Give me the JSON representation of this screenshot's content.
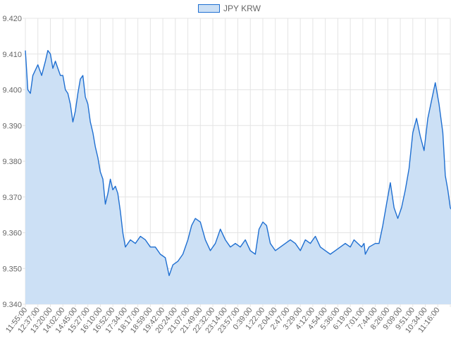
{
  "chart_data": {
    "type": "area",
    "legend_position": "top-center",
    "grid": true,
    "ylim": [
      9.34,
      9.42
    ],
    "y_ticks": [
      "9.420",
      "9.410",
      "9.400",
      "9.390",
      "9.380",
      "9.370",
      "9.360",
      "9.350",
      "9.340"
    ],
    "x_tick_labels": [
      "11:55:00",
      "12:37:00",
      "13:20:00",
      "14:02:00",
      "14:45:00",
      "15:27:00",
      "16:10:00",
      "16:52:00",
      "17:34:00",
      "18:17:00",
      "18:59:00",
      "19:42:00",
      "20:24:00",
      "21:07:00",
      "21:49:00",
      "22:32:00",
      "23:14:00",
      "23:57:00",
      "0:39:00",
      "1:22:00",
      "2:04:00",
      "2:47:00",
      "3:29:00",
      "4:12:00",
      "4:54:00",
      "5:36:00",
      "6:19:00",
      "7:01:00",
      "7:44:00",
      "8:26:00",
      "9:09:00",
      "9:51:00",
      "10:34:00",
      "11:16:00"
    ],
    "series": [
      {
        "name": "JPY KRW",
        "line_color": "#1f6fd1",
        "fill_color": "#cce0f5",
        "points": [
          [
            0.0,
            9.411
          ],
          [
            0.2,
            9.4
          ],
          [
            0.4,
            9.399
          ],
          [
            0.6,
            9.404
          ],
          [
            1.0,
            9.407
          ],
          [
            1.3,
            9.404
          ],
          [
            1.6,
            9.408
          ],
          [
            1.8,
            9.411
          ],
          [
            2.0,
            9.41
          ],
          [
            2.2,
            9.406
          ],
          [
            2.4,
            9.408
          ],
          [
            2.6,
            9.406
          ],
          [
            2.8,
            9.404
          ],
          [
            3.0,
            9.404
          ],
          [
            3.2,
            9.4
          ],
          [
            3.4,
            9.399
          ],
          [
            3.6,
            9.396
          ],
          [
            3.8,
            9.391
          ],
          [
            4.0,
            9.394
          ],
          [
            4.2,
            9.399
          ],
          [
            4.4,
            9.403
          ],
          [
            4.6,
            9.404
          ],
          [
            4.8,
            9.398
          ],
          [
            5.0,
            9.396
          ],
          [
            5.2,
            9.391
          ],
          [
            5.4,
            9.388
          ],
          [
            5.6,
            9.384
          ],
          [
            5.8,
            9.381
          ],
          [
            6.0,
            9.377
          ],
          [
            6.2,
            9.375
          ],
          [
            6.4,
            9.368
          ],
          [
            6.6,
            9.371
          ],
          [
            6.8,
            9.375
          ],
          [
            7.0,
            9.372
          ],
          [
            7.2,
            9.373
          ],
          [
            7.4,
            9.371
          ],
          [
            7.6,
            9.366
          ],
          [
            7.8,
            9.36
          ],
          [
            8.0,
            9.356
          ],
          [
            8.4,
            9.358
          ],
          [
            8.8,
            9.357
          ],
          [
            9.2,
            9.359
          ],
          [
            9.6,
            9.358
          ],
          [
            10.0,
            9.356
          ],
          [
            10.4,
            9.356
          ],
          [
            10.8,
            9.354
          ],
          [
            11.2,
            9.353
          ],
          [
            11.5,
            9.348
          ],
          [
            11.8,
            9.351
          ],
          [
            12.2,
            9.352
          ],
          [
            12.6,
            9.354
          ],
          [
            13.0,
            9.358
          ],
          [
            13.3,
            9.362
          ],
          [
            13.6,
            9.364
          ],
          [
            14.0,
            9.363
          ],
          [
            14.4,
            9.358
          ],
          [
            14.8,
            9.355
          ],
          [
            15.2,
            9.357
          ],
          [
            15.6,
            9.361
          ],
          [
            16.0,
            9.358
          ],
          [
            16.4,
            9.356
          ],
          [
            16.8,
            9.357
          ],
          [
            17.2,
            9.356
          ],
          [
            17.6,
            9.358
          ],
          [
            18.0,
            9.355
          ],
          [
            18.4,
            9.354
          ],
          [
            18.7,
            9.361
          ],
          [
            19.0,
            9.363
          ],
          [
            19.3,
            9.362
          ],
          [
            19.6,
            9.357
          ],
          [
            20.0,
            9.355
          ],
          [
            20.4,
            9.356
          ],
          [
            20.8,
            9.357
          ],
          [
            21.2,
            9.358
          ],
          [
            21.6,
            9.357
          ],
          [
            22.0,
            9.355
          ],
          [
            22.4,
            9.358
          ],
          [
            22.8,
            9.357
          ],
          [
            23.2,
            9.359
          ],
          [
            23.6,
            9.356
          ],
          [
            24.0,
            9.355
          ],
          [
            24.4,
            9.354
          ],
          [
            24.8,
            9.355
          ],
          [
            25.2,
            9.356
          ],
          [
            25.6,
            9.357
          ],
          [
            26.0,
            9.356
          ],
          [
            26.3,
            9.358
          ],
          [
            26.6,
            9.357
          ],
          [
            26.9,
            9.356
          ],
          [
            27.1,
            9.357
          ],
          [
            27.2,
            9.354
          ],
          [
            27.5,
            9.356
          ],
          [
            28.0,
            9.357
          ],
          [
            28.3,
            9.357
          ],
          [
            28.6,
            9.362
          ],
          [
            28.9,
            9.368
          ],
          [
            29.2,
            9.374
          ],
          [
            29.5,
            9.367
          ],
          [
            29.8,
            9.364
          ],
          [
            30.1,
            9.367
          ],
          [
            30.4,
            9.372
          ],
          [
            30.7,
            9.378
          ],
          [
            31.0,
            9.388
          ],
          [
            31.3,
            9.392
          ],
          [
            31.6,
            9.387
          ],
          [
            31.9,
            9.383
          ],
          [
            32.2,
            9.392
          ],
          [
            32.5,
            9.397
          ],
          [
            32.8,
            9.402
          ],
          [
            33.1,
            9.396
          ],
          [
            33.4,
            9.388
          ],
          [
            33.6,
            9.376
          ],
          [
            33.8,
            9.372
          ],
          [
            34.0,
            9.367
          ],
          [
            34.2,
            9.366
          ],
          [
            34.4,
            9.375
          ],
          [
            34.6,
            9.373
          ],
          [
            34.8,
            9.366
          ],
          [
            35.0,
            9.365
          ]
        ]
      }
    ]
  }
}
